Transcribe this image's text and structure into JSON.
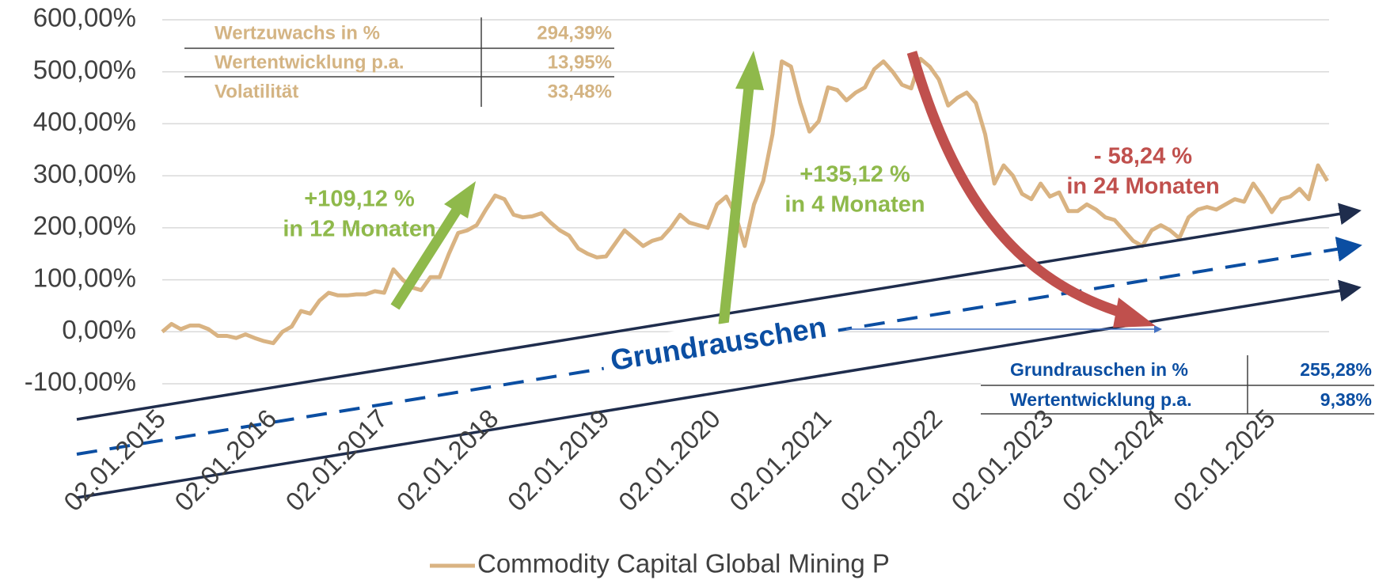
{
  "chart_data": {
    "type": "line",
    "categories": [
      "02.01.2015",
      null,
      null,
      null,
      null,
      null,
      null,
      null,
      null,
      null,
      null,
      null,
      "02.01.2016",
      null,
      null,
      null,
      null,
      null,
      null,
      null,
      null,
      null,
      null,
      null,
      "02.01.2017",
      null,
      null,
      null,
      null,
      null,
      null,
      null,
      null,
      null,
      null,
      null,
      "02.01.2018",
      null,
      null,
      null,
      null,
      null,
      null,
      null,
      null,
      null,
      null,
      null,
      "02.01.2019",
      null,
      null,
      null,
      null,
      null,
      null,
      null,
      null,
      null,
      null,
      null,
      "02.01.2020",
      null,
      null,
      null,
      null,
      null,
      null,
      null,
      null,
      null,
      null,
      null,
      "02.01.2021",
      null,
      null,
      null,
      null,
      null,
      null,
      null,
      null,
      null,
      null,
      null,
      "02.01.2022",
      null,
      null,
      null,
      null,
      null,
      null,
      null,
      null,
      null,
      null,
      null,
      "02.01.2023",
      null,
      null,
      null,
      null,
      null,
      null,
      null,
      null,
      null,
      null,
      null,
      "02.01.2024",
      null,
      null,
      null,
      null,
      null,
      null,
      null,
      null,
      null,
      null,
      null,
      "02.01.2025",
      null,
      null,
      null,
      null,
      null,
      null
    ],
    "series": [
      {
        "name": "Commodity Capital Global Mining P",
        "color": "#d9b382",
        "values": [
          0,
          15,
          5,
          12,
          12,
          5,
          -8,
          -8,
          -12,
          -5,
          -12,
          -18,
          -22,
          0,
          10,
          40,
          35,
          60,
          75,
          70,
          70,
          72,
          72,
          78,
          75,
          120,
          100,
          85,
          80,
          105,
          105,
          150,
          190,
          195,
          205,
          235,
          262,
          255,
          225,
          220,
          222,
          228,
          210,
          195,
          185,
          160,
          150,
          143,
          145,
          170,
          195,
          180,
          165,
          175,
          180,
          200,
          225,
          210,
          205,
          200,
          245,
          260,
          225,
          165,
          245,
          290,
          380,
          520,
          510,
          440,
          385,
          405,
          470,
          465,
          445,
          460,
          470,
          505,
          520,
          500,
          475,
          468,
          525,
          510,
          485,
          435,
          450,
          460,
          440,
          380,
          285,
          320,
          300,
          265,
          255,
          285,
          260,
          268,
          232,
          232,
          245,
          235,
          220,
          215,
          195,
          175,
          165,
          195,
          205,
          195,
          180,
          220,
          235,
          240,
          235,
          245,
          255,
          250,
          285,
          260,
          230,
          255,
          260,
          275,
          255,
          320,
          290
        ]
      }
    ],
    "ylim": [
      -100,
      600
    ],
    "yticks": [
      {
        "value": -100,
        "label": "-100,00%"
      },
      {
        "value": 0,
        "label": "0,00%"
      },
      {
        "value": 100,
        "label": "100,00%"
      },
      {
        "value": 200,
        "label": "200,00%"
      },
      {
        "value": 300,
        "label": "300,00%"
      },
      {
        "value": 400,
        "label": "400,00%"
      },
      {
        "value": 500,
        "label": "500,00%"
      },
      {
        "value": 600,
        "label": "600,00%"
      }
    ],
    "grid": true,
    "legend": "bottom",
    "annotations": {
      "stats_table": [
        [
          "Wertzuwachs in %",
          "294,39%"
        ],
        [
          "Wertentwicklung p.a.",
          "13,95%"
        ],
        [
          "Volatilität",
          "33,48%"
        ]
      ],
      "noise_table": [
        [
          "Grundrauschen in %",
          "255,28%"
        ],
        [
          "Wertentwicklung p.a.",
          "9,38%"
        ]
      ],
      "rise1": [
        "+109,12 %",
        "in 12 Monaten"
      ],
      "rise2": [
        "+135,12 %",
        "in 4 Monaten"
      ],
      "fall": [
        "- 58,24 %",
        "in 24 Monaten"
      ],
      "channel": "Grundrauschen"
    }
  }
}
